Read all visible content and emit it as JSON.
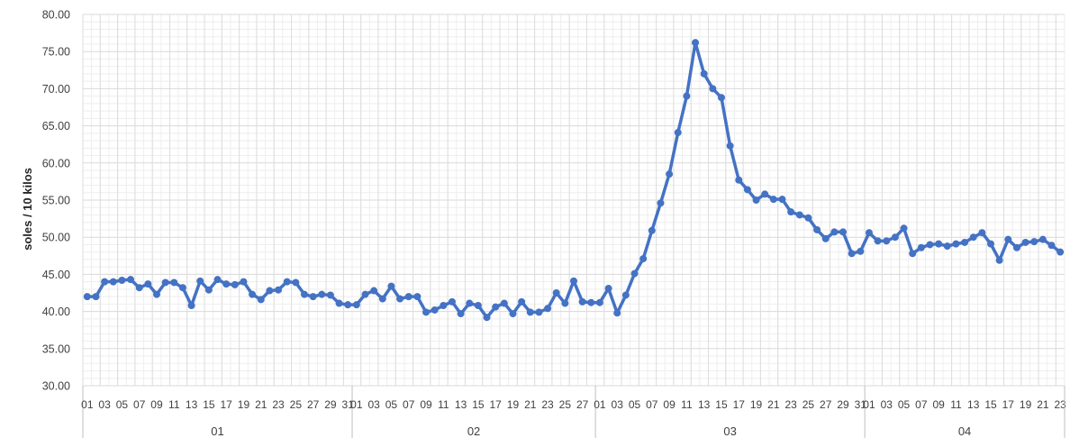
{
  "chart_data": {
    "type": "line",
    "ylabel": "soles / 10 kilos",
    "ylim": [
      30,
      80
    ],
    "yticks": [
      "30.00",
      "35.00",
      "40.00",
      "45.00",
      "50.00",
      "55.00",
      "60.00",
      "65.00",
      "70.00",
      "75.00",
      "80.00"
    ],
    "grid": true,
    "line_color": "#4472C4",
    "groups": [
      {
        "label": "01",
        "days": [
          "01",
          "02",
          "03",
          "04",
          "05",
          "06",
          "07",
          "08",
          "09",
          "10",
          "11",
          "12",
          "13",
          "14",
          "15",
          "16",
          "17",
          "18",
          "19",
          "20",
          "21",
          "22",
          "23",
          "24",
          "25",
          "26",
          "27",
          "28",
          "29",
          "30",
          "31"
        ]
      },
      {
        "label": "02",
        "days": [
          "01",
          "02",
          "03",
          "04",
          "05",
          "06",
          "07",
          "08",
          "09",
          "10",
          "11",
          "12",
          "13",
          "14",
          "15",
          "16",
          "17",
          "18",
          "19",
          "20",
          "21",
          "22",
          "23",
          "24",
          "25",
          "26",
          "27",
          "28"
        ]
      },
      {
        "label": "03",
        "days": [
          "01",
          "02",
          "03",
          "04",
          "05",
          "06",
          "07",
          "08",
          "09",
          "10",
          "11",
          "12",
          "13",
          "14",
          "15",
          "16",
          "17",
          "18",
          "19",
          "20",
          "21",
          "22",
          "23",
          "24",
          "25",
          "26",
          "27",
          "28",
          "29",
          "30",
          "31"
        ]
      },
      {
        "label": "04",
        "days": [
          "01",
          "02",
          "03",
          "04",
          "05",
          "06",
          "07",
          "08",
          "09",
          "10",
          "11",
          "12",
          "13",
          "14",
          "15",
          "16",
          "17",
          "18",
          "19",
          "20",
          "21",
          "22",
          "23"
        ]
      }
    ],
    "values": [
      42.0,
      42.0,
      44.0,
      44.0,
      44.2,
      44.3,
      43.2,
      43.7,
      42.3,
      43.9,
      43.9,
      43.2,
      40.8,
      44.1,
      42.9,
      44.3,
      43.7,
      43.6,
      44.0,
      42.3,
      41.6,
      42.8,
      42.9,
      44.0,
      43.9,
      42.3,
      42.0,
      42.3,
      42.2,
      41.1,
      40.9,
      40.9,
      42.3,
      42.8,
      41.7,
      43.4,
      41.7,
      42.0,
      42.0,
      39.9,
      40.2,
      40.8,
      41.3,
      39.7,
      41.1,
      40.8,
      39.2,
      40.6,
      41.1,
      39.7,
      41.3,
      39.9,
      39.9,
      40.4,
      42.5,
      41.1,
      44.1,
      41.3,
      41.2,
      41.2,
      43.1,
      39.8,
      42.2,
      45.1,
      47.1,
      50.9,
      54.6,
      58.5,
      64.1,
      69.0,
      76.2,
      72.0,
      70.0,
      68.8,
      62.3,
      57.7,
      56.4,
      55.0,
      55.8,
      55.1,
      55.1,
      53.4,
      53.0,
      52.6,
      51.0,
      49.8,
      50.7,
      50.7,
      47.8,
      48.1,
      50.6,
      49.5,
      49.5,
      50.0,
      51.2,
      47.8,
      48.6,
      49.0,
      49.1,
      48.8,
      49.1,
      49.3,
      50.0,
      50.6,
      49.1,
      46.9,
      49.7,
      48.6,
      49.3,
      49.4,
      49.7,
      48.9,
      48.0
    ]
  }
}
